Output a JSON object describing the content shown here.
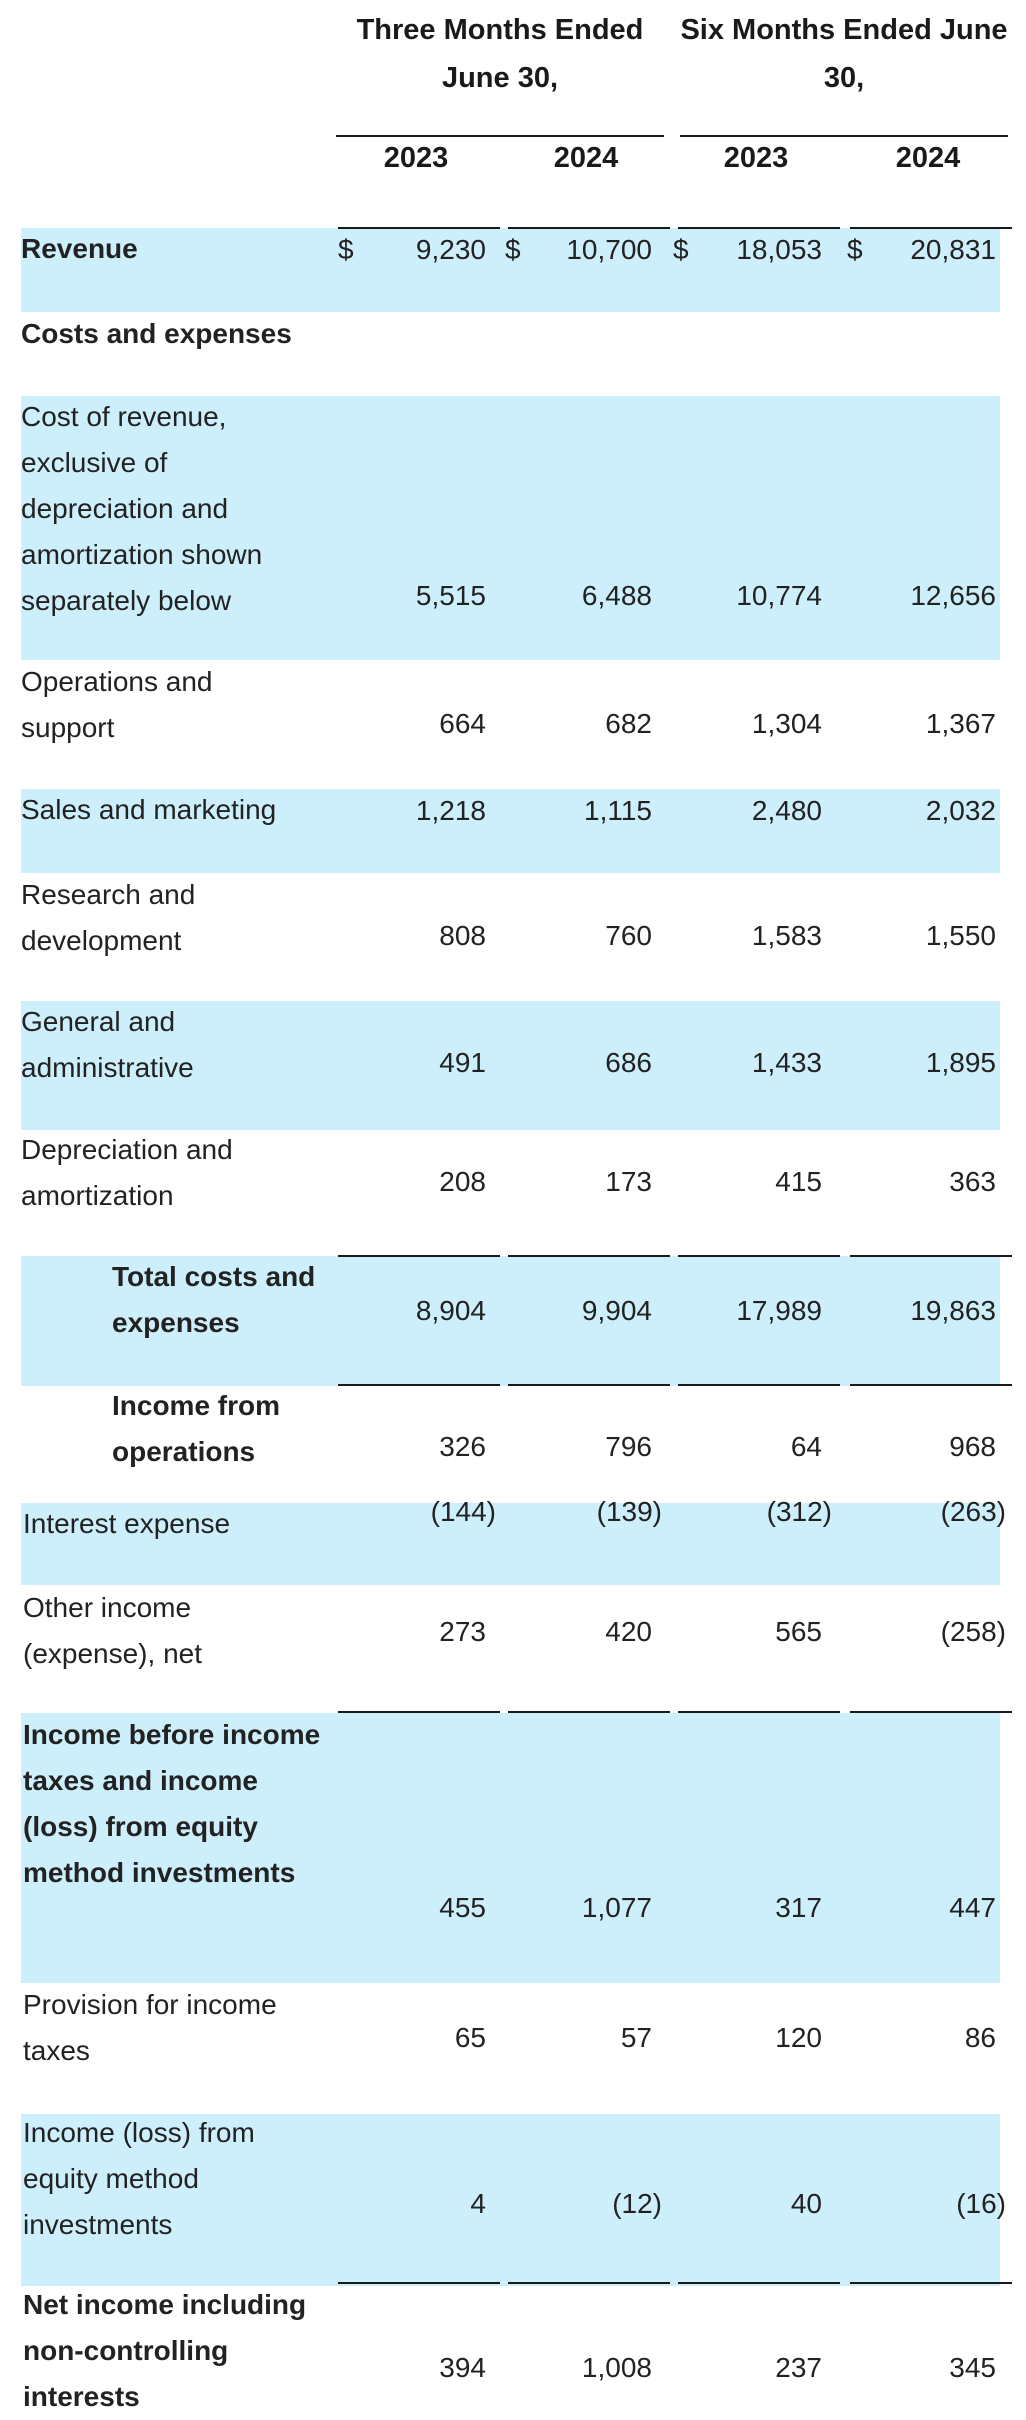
{
  "header": {
    "three_months": "Three Months Ended June 30,",
    "six_months": "Six Months Ended June 30,",
    "years": [
      "2023",
      "2024",
      "2023",
      "2024"
    ]
  },
  "currency_symbol": "$",
  "rows": [
    {
      "label": "Revenue",
      "values": [
        "9,230",
        "10,700",
        "18,053",
        "20,831"
      ]
    },
    {
      "label": "Costs and expenses",
      "values": []
    },
    {
      "label": "Cost of revenue, exclusive of depreciation and amortization shown separately below",
      "values": [
        "5,515",
        "6,488",
        "10,774",
        "12,656"
      ]
    },
    {
      "label": "Operations and support",
      "values": [
        "664",
        "682",
        "1,304",
        "1,367"
      ]
    },
    {
      "label": "Sales and marketing",
      "values": [
        "1,218",
        "1,115",
        "2,480",
        "2,032"
      ]
    },
    {
      "label": "Research and development",
      "values": [
        "808",
        "760",
        "1,583",
        "1,550"
      ]
    },
    {
      "label": "General and administrative",
      "values": [
        "491",
        "686",
        "1,433",
        "1,895"
      ]
    },
    {
      "label": "Depreciation and amortization",
      "values": [
        "208",
        "173",
        "415",
        "363"
      ]
    },
    {
      "label": "Total costs and expenses",
      "values": [
        "8,904",
        "9,904",
        "17,989",
        "19,863"
      ]
    },
    {
      "label": "Income from operations",
      "values": [
        "326",
        "796",
        "64",
        "968"
      ]
    },
    {
      "label": "Interest expense",
      "values": [
        "(144)",
        "(139)",
        "(312)",
        "(263)"
      ]
    },
    {
      "label": "Other income (expense), net",
      "values": [
        "273",
        "420",
        "565",
        "(258)"
      ]
    },
    {
      "label": "Income before income taxes and income (loss) from equity method investments",
      "values": [
        "455",
        "1,077",
        "317",
        "447"
      ]
    },
    {
      "label": "Provision for income taxes",
      "values": [
        "65",
        "57",
        "120",
        "86"
      ]
    },
    {
      "label": "Income (loss) from equity method investments",
      "values": [
        "4",
        "(12)",
        "40",
        "(16)"
      ]
    },
    {
      "label": "Net income including non-controlling interests",
      "values": [
        "394",
        "1,008",
        "237",
        "345"
      ]
    }
  ]
}
